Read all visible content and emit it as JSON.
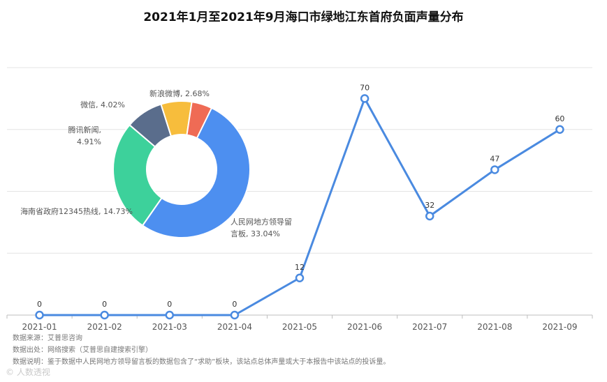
{
  "title": "2021年1月至2021年9月海口市绿地江东首府负面声量分布",
  "chart_data": [
    {
      "type": "line",
      "categories": [
        "2021-01",
        "2021-02",
        "2021-03",
        "2021-04",
        "2021-05",
        "2021-06",
        "2021-07",
        "2021-08",
        "2021-09"
      ],
      "values": [
        0,
        0,
        0,
        0,
        12,
        70,
        32,
        47,
        60
      ],
      "ylim": [
        0,
        80
      ],
      "grid": true,
      "color": "#4a8ae0"
    },
    {
      "type": "pie",
      "donut": true,
      "slices": [
        {
          "label": "人民网地方领导留言板",
          "label_lines": [
            "人民网地方领导留",
            "言板, 33.04%"
          ],
          "percent": 33.04,
          "share": 59.66,
          "color": "#4d8ff0"
        },
        {
          "label": "海南省政府12345热线",
          "label_lines": [
            "海南省政府12345热线, 14.73%"
          ],
          "percent": 14.73,
          "share": 26.6,
          "color": "#3dd19b"
        },
        {
          "label": "腾讯新闻",
          "label_lines": [
            "腾讯新闻,",
            "4.91%"
          ],
          "percent": 4.91,
          "share": 8.87,
          "color": "#5a6d8c"
        },
        {
          "label": "微信",
          "label_lines": [
            "微信, 4.02%"
          ],
          "percent": 4.02,
          "share": 7.26,
          "color": "#f7bd3c"
        },
        {
          "label": "新浪微博",
          "label_lines": [
            "新浪微博, 2.68%"
          ],
          "percent": 2.68,
          "share": 4.84,
          "color": "#ef6b55"
        }
      ]
    }
  ],
  "notes": {
    "source": "数据来源：艾普思咨询",
    "origin": "数据出处：网络搜索（艾普思自建搜索引擎）",
    "explain": "数据说明：鉴于数据中人民网地方领导留言板的数据包含了“求助”板块，该站点总体声量或大于本报告中该站点的投诉量。"
  },
  "watermark": "© 人数透视"
}
